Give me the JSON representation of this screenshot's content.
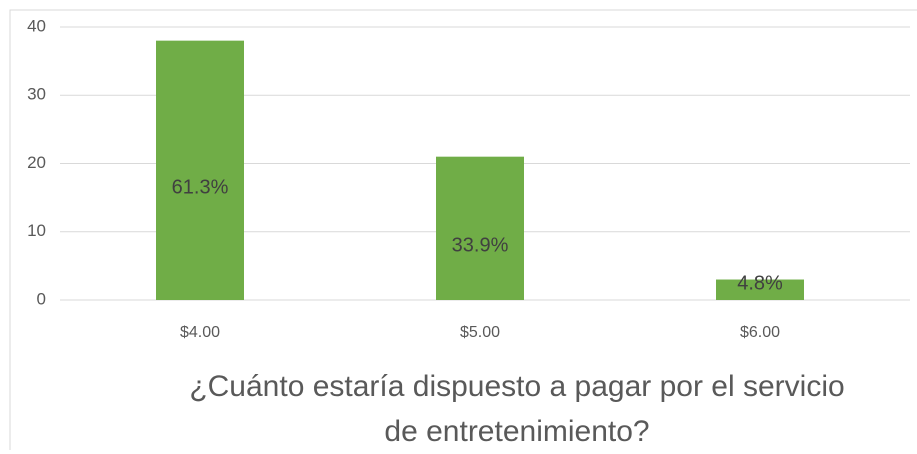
{
  "chart_data": {
    "type": "bar",
    "title": "¿Cuánto estaría dispuesto a pagar por el servicio de entretenimiento?",
    "categories": [
      "$4.00",
      "$5.00",
      "$6.00"
    ],
    "values": [
      38,
      21,
      3
    ],
    "data_labels": [
      "61.3%",
      "33.9%",
      "4.8%"
    ],
    "color": "#70ad47",
    "ylim": [
      0,
      40
    ],
    "yticks": [
      0,
      10,
      20,
      30,
      40
    ],
    "grid": true
  }
}
